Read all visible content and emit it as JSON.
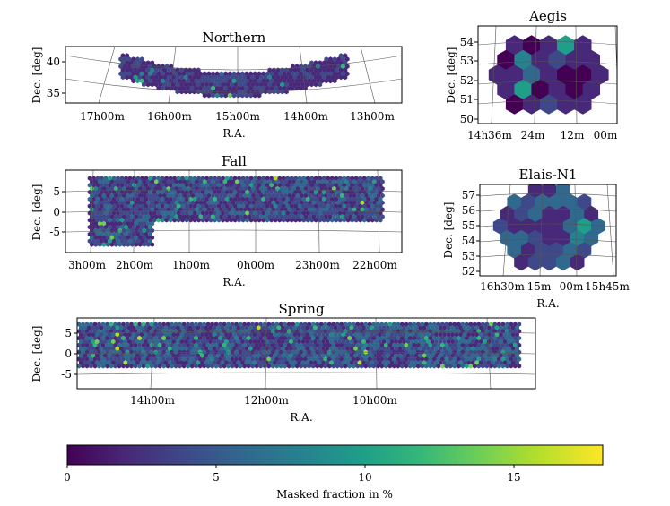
{
  "colors": {
    "viridis": [
      "#440154",
      "#482878",
      "#3e4989",
      "#31688e",
      "#26828e",
      "#1f9e89",
      "#35b779",
      "#6ece58",
      "#b5de2b",
      "#fde725"
    ],
    "grid": "#555555",
    "frame": "#000000"
  },
  "chart_data": [
    {
      "type": "heatmap",
      "name": "northern",
      "title": "Northern",
      "xlabel": "R.A.",
      "ylabel": "Dec. [deg]",
      "xticks": [
        "17h00m",
        "16h00m",
        "15h00m",
        "14h00m",
        "13h00m"
      ],
      "yticks": [
        "35",
        "40"
      ],
      "ylim": [
        33.5,
        42.5
      ],
      "typical_masked_fraction_percent": [
        1,
        4
      ],
      "max_masked_fraction_percent": 12
    },
    {
      "type": "heatmap",
      "name": "aegis",
      "title": "Aegis",
      "xlabel": "",
      "ylabel": "Dec. [deg]",
      "xticks": [
        "14h36m",
        "24m",
        "12m",
        "00m"
      ],
      "yticks": [
        "50",
        "51",
        "52",
        "53",
        "54"
      ],
      "ylim": [
        49.9,
        54.9
      ],
      "typical_masked_fraction_percent": [
        0,
        4
      ]
    },
    {
      "type": "heatmap",
      "name": "fall",
      "title": "Fall",
      "xlabel": "R.A.",
      "ylabel": "Dec. [deg]",
      "xticks": [
        "3h00m",
        "2h00m",
        "1h00m",
        "0h00m",
        "23h00m",
        "22h00m"
      ],
      "yticks": [
        "5",
        "0",
        "-5"
      ],
      "ylim": [
        -9,
        10
      ],
      "typical_masked_fraction_percent": [
        1,
        6
      ],
      "max_masked_fraction_percent": 14
    },
    {
      "type": "heatmap",
      "name": "elais",
      "title": "Elais-N1",
      "xlabel": "R.A.",
      "ylabel": "Dec. [deg]",
      "xticks": [
        "16h30m",
        "15m",
        "00m",
        "15h45m"
      ],
      "yticks": [
        "52",
        "53",
        "54",
        "55",
        "56",
        "57"
      ],
      "ylim": [
        51.8,
        57.8
      ],
      "typical_masked_fraction_percent": [
        1,
        7
      ]
    },
    {
      "type": "heatmap",
      "name": "spring",
      "title": "Spring",
      "xlabel": "R.A.",
      "ylabel": "Dec. [deg]",
      "xticks": [
        "14h00m",
        "12h00m",
        "10h00m"
      ],
      "yticks": [
        "5",
        "0",
        "-5"
      ],
      "ylim": [
        -7.5,
        8.5
      ],
      "typical_masked_fraction_percent": [
        1,
        7
      ],
      "max_masked_fraction_percent": 15
    }
  ],
  "colorbar": {
    "label": "Masked fraction in %",
    "range": [
      0,
      18
    ],
    "ticks": [
      "0",
      "5",
      "10",
      "15"
    ]
  }
}
